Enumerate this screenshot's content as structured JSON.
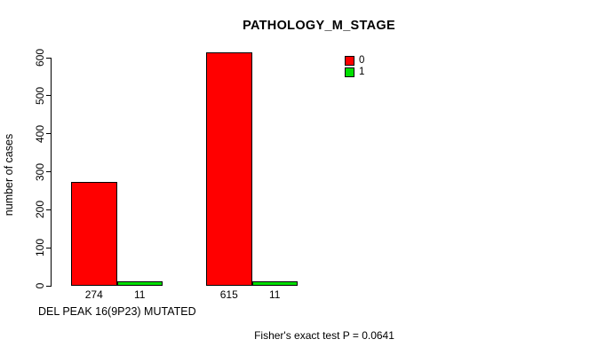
{
  "chart_data": {
    "type": "bar",
    "title": "PATHOLOGY_M_STAGE",
    "xlabel": "DEL PEAK 16(9P23) MUTATED",
    "ylabel": "number of cases",
    "ylim": [
      0,
      600
    ],
    "yticks": [
      0,
      100,
      200,
      300,
      400,
      500,
      600
    ],
    "grid": false,
    "series": [
      {
        "name": "0",
        "color": "#ff0000",
        "values": [
          274,
          615
        ]
      },
      {
        "name": "1",
        "color": "#00e000",
        "values": [
          11,
          11
        ]
      }
    ],
    "bar_value_labels": [
      [
        "274",
        "11"
      ],
      [
        "615",
        "11"
      ]
    ],
    "legend": {
      "position": "top-right",
      "entries": [
        {
          "label": "0",
          "color": "#ff0000"
        },
        {
          "label": "1",
          "color": "#00e000"
        }
      ]
    },
    "annotation": "Fisher's exact test P = 0.0641"
  }
}
